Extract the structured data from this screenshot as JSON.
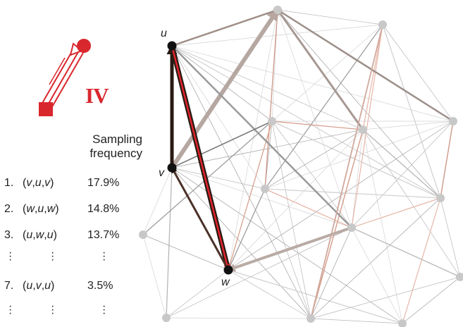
{
  "legend": {
    "roman_numeral": "IV",
    "color": "#d9272e"
  },
  "title_lines": [
    "Sampling",
    "frequency"
  ],
  "rows": [
    {
      "index": "1.",
      "a": "v",
      "b": "u",
      "c": "v",
      "value": "17.9%"
    },
    {
      "index": "2.",
      "a": "w",
      "b": "u",
      "c": "w",
      "value": "14.8%"
    },
    {
      "index": "3.",
      "a": "u",
      "b": "w",
      "c": "u",
      "value": "13.7%"
    },
    {
      "index": "7.",
      "a": "u",
      "b": "v",
      "c": "u",
      "value": "3.5%"
    }
  ],
  "node_labels": {
    "u": "u",
    "v": "v",
    "w": "w"
  },
  "colors": {
    "highlight": "#e0242b",
    "dark": "#2a1a14",
    "node_gray": "#c8c8c8",
    "node_black": "#111111"
  }
}
